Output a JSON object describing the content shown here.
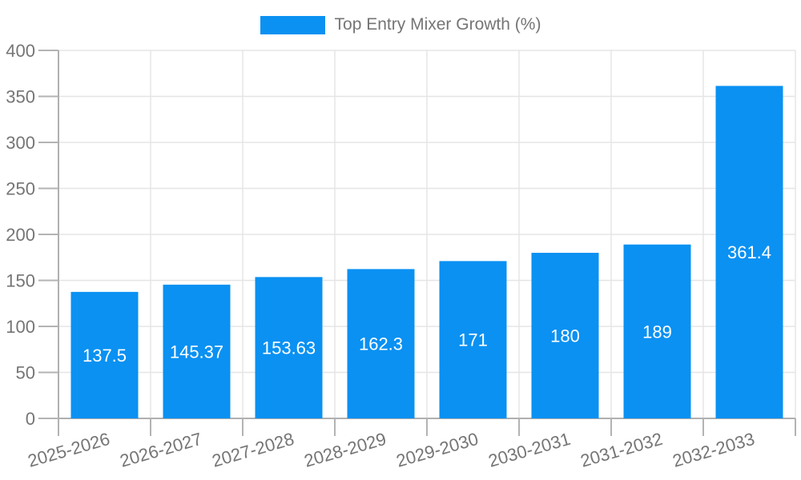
{
  "legend": {
    "label": "Top Entry Mixer Growth (%)"
  },
  "chart_data": {
    "type": "bar",
    "title": "Top Entry Mixer Growth (%)",
    "categories": [
      "2025-2026",
      "2026-2027",
      "2027-2028",
      "2028-2029",
      "2029-2030",
      "2030-2031",
      "2031-2032",
      "2032-2033"
    ],
    "values": [
      137.5,
      145.37,
      153.63,
      162.3,
      171,
      180,
      189,
      361.4
    ],
    "bar_labels": [
      "137.5",
      "145.37",
      "153.63",
      "162.3",
      "171",
      "180",
      "189",
      "361.4"
    ],
    "xlabel": "",
    "ylabel": "",
    "ylim": [
      0,
      400
    ],
    "yticks": [
      0,
      50,
      100,
      150,
      200,
      250,
      300,
      350,
      400
    ],
    "grid": true,
    "legend_position": "top-center",
    "bar_color": "#0a91f2",
    "bar_label_color": "#ffffff",
    "axis_color": "#b0b0b0",
    "gridline_color": "#e5e5e5",
    "tick_color": "#b3b3b3",
    "tick_label_color": "#757575",
    "x_label_rotation_deg": -16
  }
}
